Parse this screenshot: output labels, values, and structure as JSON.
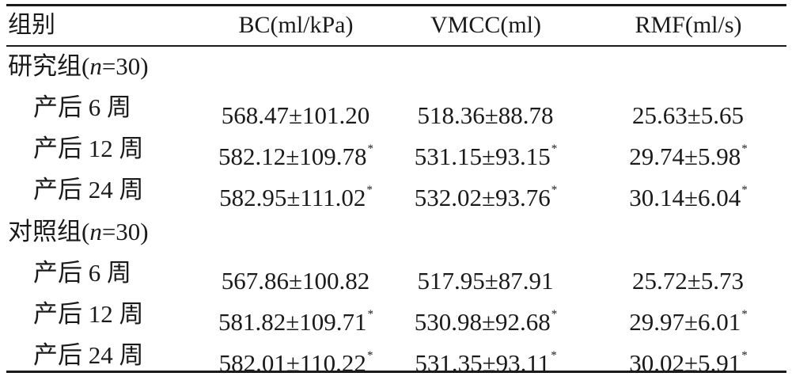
{
  "header": {
    "col0": "组别",
    "col1": "BC(ml/kPa)",
    "col2": "VMCC(ml)",
    "col3": "RMF(ml/s)"
  },
  "groups": [
    {
      "label_prefix": "研究组(",
      "label_var": "n",
      "label_suffix": "=30)",
      "rows": [
        {
          "label": "产后 6 周",
          "bc": "568.47±101.20",
          "bc_mark": "",
          "vmcc": "518.36±88.78",
          "vmcc_mark": "",
          "rmf": "25.63±5.65",
          "rmf_mark": ""
        },
        {
          "label": "产后 12 周",
          "bc": "582.12±109.78",
          "bc_mark": "*",
          "vmcc": "531.15±93.15",
          "vmcc_mark": "*",
          "rmf": "29.74±5.98",
          "rmf_mark": "*"
        },
        {
          "label": "产后 24 周",
          "bc": "582.95±111.02",
          "bc_mark": "*",
          "vmcc": "532.02±93.76",
          "vmcc_mark": "*",
          "rmf": "30.14±6.04",
          "rmf_mark": "*"
        }
      ]
    },
    {
      "label_prefix": "对照组(",
      "label_var": "n",
      "label_suffix": "=30)",
      "rows": [
        {
          "label": "产后 6 周",
          "bc": "567.86±100.82",
          "bc_mark": "",
          "vmcc": "517.95±87.91",
          "vmcc_mark": "",
          "rmf": "25.72±5.73",
          "rmf_mark": ""
        },
        {
          "label": "产后 12 周",
          "bc": "581.82±109.71",
          "bc_mark": "*",
          "vmcc": "530.98±92.68",
          "vmcc_mark": "*",
          "rmf": "29.97±6.01",
          "rmf_mark": "*"
        },
        {
          "label": "产后 24 周",
          "bc": "582.01±110.22",
          "bc_mark": "*",
          "vmcc": "531.35±93.11",
          "vmcc_mark": "*",
          "rmf": "30.02±5.91",
          "rmf_mark": "*"
        }
      ]
    }
  ]
}
